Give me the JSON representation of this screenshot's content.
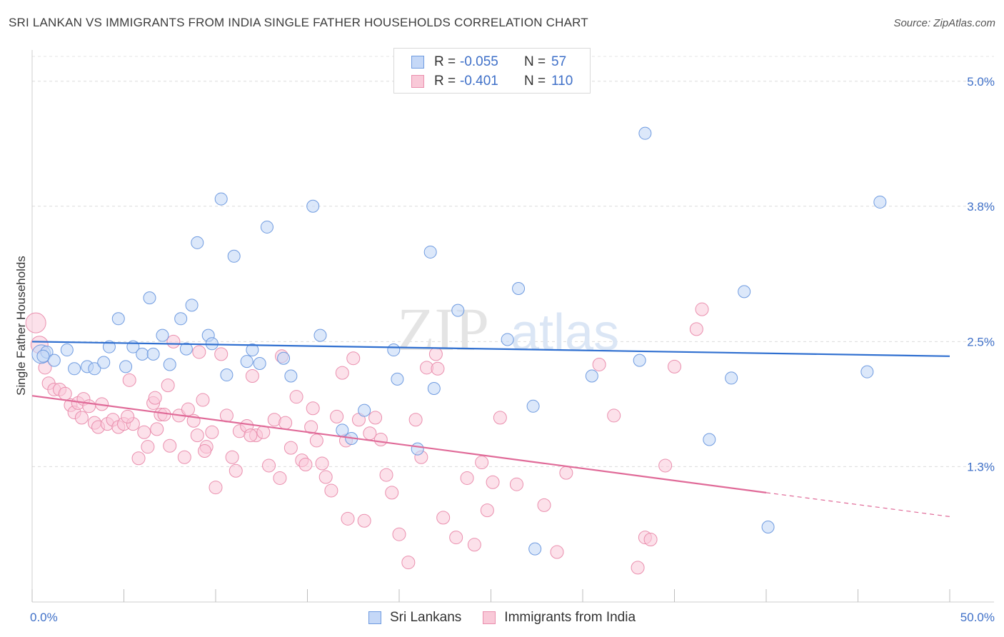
{
  "header": {
    "title": "SRI LANKAN VS IMMIGRANTS FROM INDIA SINGLE FATHER HOUSEHOLDS CORRELATION CHART",
    "source": "Source: ZipAtlas.com"
  },
  "legend_top": {
    "rows": [
      {
        "r_label": "R =",
        "r_value": "-0.055",
        "n_label": "N =",
        "n_value": "57"
      },
      {
        "r_label": "R =",
        "r_value": "-0.401",
        "n_label": "N =",
        "n_value": "110"
      }
    ]
  },
  "watermark": {
    "part1": "ZIP",
    "part2": "atlas"
  },
  "colors": {
    "blue_fill": "#c5d8f7",
    "blue_stroke": "#6f9be0",
    "blue_line": "#2f6fd0",
    "pink_fill": "#f9c9d8",
    "pink_stroke": "#ea8fae",
    "pink_line": "#e06a98",
    "axis_label": "#3f70c8"
  },
  "chart_data": {
    "type": "scatter",
    "title": "SRI LANKAN VS IMMIGRANTS FROM INDIA SINGLE FATHER HOUSEHOLDS CORRELATION CHART",
    "xlabel": "",
    "ylabel": "Single Father Households",
    "xlim": [
      0,
      50
    ],
    "ylim": [
      0,
      5.3
    ],
    "x_tick_labels": [
      "0.0%",
      "50.0%"
    ],
    "y_ticks": [
      {
        "value": 1.3,
        "label": "1.3%"
      },
      {
        "value": 2.5,
        "label": "2.5%"
      },
      {
        "value": 3.8,
        "label": "3.8%"
      },
      {
        "value": 5.0,
        "label": "5.0%"
      }
    ],
    "series": [
      {
        "name": "Sri Lankans",
        "r": -0.055,
        "n": 57,
        "trend": {
          "x0": 0,
          "y0": 2.5,
          "x1": 50,
          "y1": 2.36
        },
        "points": [
          [
            0.5,
            2.38
          ],
          [
            0.8,
            2.4
          ],
          [
            1.2,
            2.32
          ],
          [
            1.9,
            2.42
          ],
          [
            2.3,
            2.24
          ],
          [
            3.0,
            2.26
          ],
          [
            3.4,
            2.24
          ],
          [
            3.9,
            2.3
          ],
          [
            4.2,
            2.45
          ],
          [
            4.7,
            2.72
          ],
          [
            5.1,
            2.26
          ],
          [
            5.5,
            2.45
          ],
          [
            6.0,
            2.38
          ],
          [
            6.4,
            2.92
          ],
          [
            6.6,
            2.38
          ],
          [
            7.1,
            2.56
          ],
          [
            7.5,
            2.28
          ],
          [
            8.1,
            2.72
          ],
          [
            8.4,
            2.43
          ],
          [
            8.7,
            2.85
          ],
          [
            9.0,
            3.45
          ],
          [
            9.6,
            2.56
          ],
          [
            9.8,
            2.48
          ],
          [
            10.3,
            3.87
          ],
          [
            10.6,
            2.18
          ],
          [
            11.0,
            3.32
          ],
          [
            11.7,
            2.31
          ],
          [
            12.0,
            2.42
          ],
          [
            12.4,
            2.29
          ],
          [
            12.8,
            3.6
          ],
          [
            13.7,
            2.34
          ],
          [
            14.1,
            2.17
          ],
          [
            15.3,
            3.8
          ],
          [
            15.7,
            2.56
          ],
          [
            16.9,
            1.65
          ],
          [
            17.4,
            1.57
          ],
          [
            18.1,
            1.84
          ],
          [
            19.7,
            2.42
          ],
          [
            19.9,
            2.14
          ],
          [
            21.0,
            1.47
          ],
          [
            21.9,
            2.05
          ],
          [
            21.7,
            3.36
          ],
          [
            23.2,
            2.8
          ],
          [
            25.9,
            2.52
          ],
          [
            26.5,
            3.01
          ],
          [
            27.3,
            1.88
          ],
          [
            27.4,
            0.51
          ],
          [
            30.5,
            2.17
          ],
          [
            33.1,
            2.32
          ],
          [
            33.4,
            4.5
          ],
          [
            36.9,
            1.56
          ],
          [
            38.1,
            2.15
          ],
          [
            38.8,
            2.98
          ],
          [
            40.1,
            0.72
          ],
          [
            45.5,
            2.21
          ],
          [
            46.2,
            3.84
          ],
          [
            0.6,
            2.36
          ]
        ]
      },
      {
        "name": "Immigrants from India",
        "r": -0.401,
        "n": 110,
        "trend": {
          "x0": 0,
          "y0": 1.98,
          "x1": 40,
          "y1": 1.05,
          "dash_to": {
            "x": 50,
            "y": 0.82
          }
        },
        "points": [
          [
            0.2,
            2.68
          ],
          [
            0.4,
            2.47
          ],
          [
            0.7,
            2.25
          ],
          [
            0.9,
            2.1
          ],
          [
            1.2,
            2.04
          ],
          [
            1.5,
            2.04
          ],
          [
            1.8,
            2.0
          ],
          [
            2.1,
            1.89
          ],
          [
            2.3,
            1.82
          ],
          [
            2.5,
            1.91
          ],
          [
            2.8,
            1.95
          ],
          [
            3.1,
            1.88
          ],
          [
            3.4,
            1.72
          ],
          [
            3.6,
            1.68
          ],
          [
            3.8,
            1.9
          ],
          [
            4.1,
            1.71
          ],
          [
            4.4,
            1.75
          ],
          [
            4.7,
            1.68
          ],
          [
            5.0,
            1.71
          ],
          [
            5.3,
            2.13
          ],
          [
            5.5,
            1.71
          ],
          [
            5.8,
            1.38
          ],
          [
            6.1,
            1.63
          ],
          [
            6.3,
            1.49
          ],
          [
            6.6,
            1.91
          ],
          [
            6.8,
            1.66
          ],
          [
            7.0,
            1.8
          ],
          [
            7.2,
            1.8
          ],
          [
            7.5,
            1.5
          ],
          [
            7.7,
            2.5
          ],
          [
            8.0,
            1.79
          ],
          [
            8.3,
            1.39
          ],
          [
            8.5,
            1.85
          ],
          [
            8.8,
            1.74
          ],
          [
            9.0,
            1.6
          ],
          [
            9.3,
            1.94
          ],
          [
            9.5,
            1.49
          ],
          [
            9.8,
            1.63
          ],
          [
            10.0,
            1.1
          ],
          [
            10.3,
            2.38
          ],
          [
            10.6,
            1.79
          ],
          [
            10.9,
            1.39
          ],
          [
            11.1,
            1.26
          ],
          [
            11.3,
            1.64
          ],
          [
            11.7,
            1.69
          ],
          [
            12.0,
            2.17
          ],
          [
            12.2,
            1.6
          ],
          [
            12.6,
            1.63
          ],
          [
            12.9,
            1.31
          ],
          [
            13.2,
            1.75
          ],
          [
            13.5,
            1.19
          ],
          [
            13.8,
            1.72
          ],
          [
            14.1,
            1.48
          ],
          [
            14.4,
            1.97
          ],
          [
            14.7,
            1.36
          ],
          [
            14.9,
            1.32
          ],
          [
            15.2,
            1.68
          ],
          [
            15.5,
            1.55
          ],
          [
            15.8,
            1.33
          ],
          [
            16.0,
            1.2
          ],
          [
            16.3,
            1.07
          ],
          [
            16.6,
            1.78
          ],
          [
            16.9,
            2.2
          ],
          [
            17.2,
            0.8
          ],
          [
            17.5,
            2.34
          ],
          [
            17.8,
            1.75
          ],
          [
            18.1,
            0.78
          ],
          [
            18.4,
            1.62
          ],
          [
            19.0,
            1.56
          ],
          [
            19.3,
            1.22
          ],
          [
            19.6,
            1.05
          ],
          [
            20.0,
            0.65
          ],
          [
            20.5,
            0.38
          ],
          [
            21.2,
            1.39
          ],
          [
            21.5,
            2.25
          ],
          [
            22.0,
            2.38
          ],
          [
            22.4,
            0.81
          ],
          [
            23.1,
            0.62
          ],
          [
            23.7,
            1.19
          ],
          [
            24.1,
            0.55
          ],
          [
            24.5,
            1.34
          ],
          [
            24.8,
            0.88
          ],
          [
            25.1,
            1.15
          ],
          [
            26.4,
            1.13
          ],
          [
            27.9,
            0.93
          ],
          [
            28.6,
            0.48
          ],
          [
            29.1,
            1.24
          ],
          [
            30.9,
            2.28
          ],
          [
            31.7,
            1.79
          ],
          [
            33.4,
            0.62
          ],
          [
            33.7,
            0.6
          ],
          [
            34.5,
            1.31
          ],
          [
            35.0,
            2.26
          ],
          [
            36.2,
            2.62
          ],
          [
            36.5,
            2.81
          ],
          [
            11.9,
            1.6
          ],
          [
            9.1,
            2.4
          ],
          [
            5.2,
            1.78
          ],
          [
            6.7,
            1.96
          ],
          [
            2.7,
            1.77
          ],
          [
            17.1,
            1.55
          ],
          [
            22.1,
            2.24
          ],
          [
            25.5,
            1.77
          ],
          [
            13.6,
            2.36
          ],
          [
            20.9,
            1.75
          ],
          [
            15.3,
            1.86
          ],
          [
            9.4,
            1.45
          ],
          [
            18.7,
            1.77
          ],
          [
            33.0,
            0.33
          ],
          [
            7.4,
            2.08
          ]
        ]
      }
    ],
    "legend": [
      "Sri Lankans",
      "Immigrants from India"
    ],
    "legend_placement": "bottom-center",
    "grid": true
  }
}
